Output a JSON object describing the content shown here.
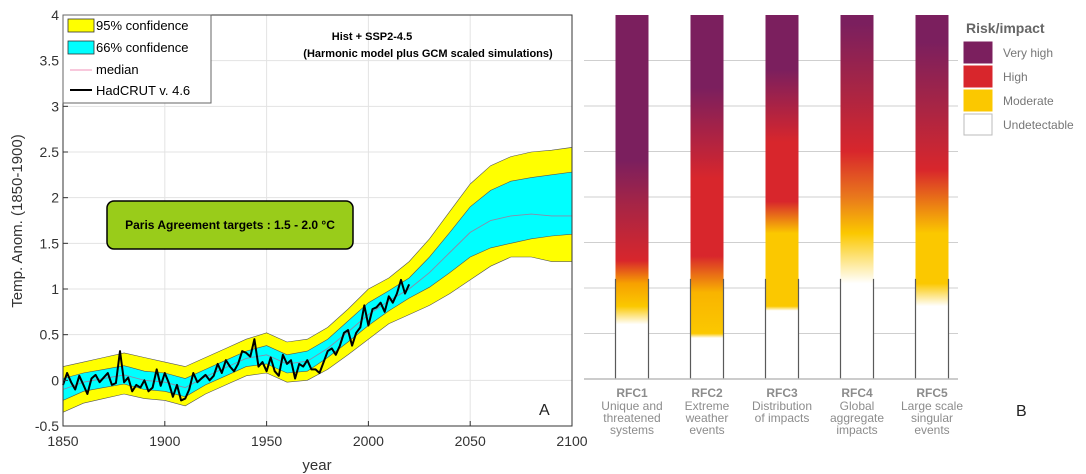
{
  "chart_data": [
    {
      "type": "area",
      "panel_label": "A",
      "title": "Hist + SSP2-4.5",
      "subtitle": "(Harmonic model plus GCM scaled simulations)",
      "xlabel": "year",
      "ylabel": "Temp. Anom. (1850-1900)",
      "xlim": [
        1850,
        2100
      ],
      "ylim": [
        -0.5,
        4
      ],
      "xticks": [
        "1850",
        "1900",
        "1950",
        "2000",
        "2050",
        "2100"
      ],
      "yticks": [
        "-0.5",
        "0",
        "0.5",
        "1",
        "1.5",
        "2",
        "2.5",
        "3",
        "3.5",
        "4"
      ],
      "grid": true,
      "legend_position": "top-left",
      "legend": [
        {
          "label": "95% confidence",
          "color": "#ffff00",
          "kind": "patch"
        },
        {
          "label": "66% confidence",
          "color": "#00ffff",
          "kind": "patch"
        },
        {
          "label": "median",
          "color": "#f4a6c8",
          "kind": "line"
        },
        {
          "label": "HadCRUT v. 4.6",
          "color": "#000000",
          "kind": "line"
        }
      ],
      "annotation": "Paris Agreement targets  :  1.5 - 2.0 °C",
      "annotation_color": "#99cc1a",
      "envelope_x": [
        1850,
        1860,
        1870,
        1880,
        1890,
        1900,
        1910,
        1920,
        1930,
        1940,
        1950,
        1960,
        1970,
        1980,
        1990,
        2000,
        2010,
        2020,
        2030,
        2040,
        2050,
        2060,
        2070,
        2080,
        2090,
        2100
      ],
      "series": [
        {
          "name": "95% confidence",
          "color": "#ffff00",
          "lower": [
            -0.35,
            -0.25,
            -0.2,
            -0.15,
            -0.2,
            -0.22,
            -0.28,
            -0.15,
            -0.05,
            0.05,
            0.08,
            -0.02,
            0.0,
            0.12,
            0.28,
            0.45,
            0.62,
            0.72,
            0.82,
            0.95,
            1.1,
            1.25,
            1.35,
            1.35,
            1.3,
            1.3
          ],
          "upper": [
            0.15,
            0.2,
            0.25,
            0.3,
            0.25,
            0.2,
            0.15,
            0.25,
            0.35,
            0.45,
            0.52,
            0.42,
            0.45,
            0.58,
            0.78,
            1.0,
            1.12,
            1.3,
            1.55,
            1.85,
            2.15,
            2.35,
            2.45,
            2.5,
            2.52,
            2.55
          ]
        },
        {
          "name": "66% confidence",
          "color": "#00ffff",
          "lower": [
            -0.22,
            -0.12,
            -0.08,
            -0.04,
            -0.1,
            -0.12,
            -0.18,
            -0.05,
            0.05,
            0.15,
            0.18,
            0.08,
            0.1,
            0.25,
            0.42,
            0.6,
            0.76,
            0.9,
            1.02,
            1.18,
            1.35,
            1.45,
            1.5,
            1.55,
            1.58,
            1.6
          ],
          "upper": [
            0.02,
            0.08,
            0.12,
            0.16,
            0.1,
            0.08,
            0.02,
            0.12,
            0.22,
            0.32,
            0.38,
            0.28,
            0.32,
            0.45,
            0.65,
            0.85,
            0.98,
            1.12,
            1.35,
            1.62,
            1.9,
            2.08,
            2.18,
            2.22,
            2.25,
            2.28
          ]
        },
        {
          "name": "median",
          "color": "#f4a6c8",
          "values": [
            -0.1,
            -0.02,
            0.02,
            0.06,
            0.0,
            -0.02,
            -0.08,
            0.04,
            0.14,
            0.24,
            0.28,
            0.18,
            0.21,
            0.35,
            0.53,
            0.72,
            0.87,
            1.0,
            1.18,
            1.4,
            1.62,
            1.75,
            1.8,
            1.82,
            1.8,
            1.8
          ]
        },
        {
          "name": "HadCRUT v. 4.6",
          "color": "#000000",
          "x": [
            1850,
            1852,
            1854,
            1856,
            1858,
            1860,
            1862,
            1864,
            1866,
            1868,
            1870,
            1872,
            1874,
            1876,
            1878,
            1880,
            1882,
            1884,
            1886,
            1888,
            1890,
            1892,
            1894,
            1896,
            1898,
            1900,
            1902,
            1904,
            1906,
            1908,
            1910,
            1912,
            1914,
            1916,
            1918,
            1920,
            1922,
            1924,
            1926,
            1928,
            1930,
            1932,
            1934,
            1936,
            1938,
            1940,
            1942,
            1944,
            1946,
            1948,
            1950,
            1952,
            1954,
            1956,
            1958,
            1960,
            1962,
            1964,
            1966,
            1968,
            1970,
            1972,
            1974,
            1976,
            1978,
            1980,
            1982,
            1984,
            1986,
            1988,
            1990,
            1992,
            1994,
            1996,
            1998,
            2000,
            2002,
            2004,
            2006,
            2008,
            2010,
            2012,
            2014,
            2016,
            2018,
            2020
          ],
          "values": [
            -0.05,
            0.08,
            -0.02,
            -0.1,
            0.05,
            -0.05,
            -0.15,
            0.02,
            0.06,
            -0.02,
            0.03,
            0.08,
            -0.05,
            -0.03,
            0.32,
            -0.02,
            0.03,
            -0.12,
            -0.05,
            -0.08,
            0.0,
            -0.12,
            -0.08,
            0.12,
            -0.06,
            0.08,
            -0.03,
            -0.18,
            -0.05,
            -0.22,
            -0.2,
            -0.1,
            0.08,
            -0.02,
            0.02,
            0.06,
            0.0,
            0.05,
            0.18,
            0.08,
            0.22,
            0.15,
            0.1,
            0.18,
            0.32,
            0.3,
            0.26,
            0.45,
            0.15,
            0.2,
            0.1,
            0.25,
            0.1,
            0.05,
            0.28,
            0.18,
            0.22,
            0.02,
            0.18,
            0.15,
            0.22,
            0.12,
            0.12,
            0.08,
            0.2,
            0.32,
            0.35,
            0.28,
            0.38,
            0.52,
            0.55,
            0.38,
            0.52,
            0.58,
            0.82,
            0.6,
            0.78,
            0.8,
            0.85,
            0.75,
            0.92,
            0.85,
            0.95,
            1.1,
            0.95,
            1.05
          ]
        }
      ]
    },
    {
      "type": "heatmap",
      "panel_label": "B",
      "legend_title": "Risk/impact",
      "legend_position": "top-right",
      "levels": [
        {
          "label": "Very high",
          "color": "#7b1f5e"
        },
        {
          "label": "High",
          "color": "#d8262c"
        },
        {
          "label": "Moderate",
          "color": "#fbc800"
        },
        {
          "label": "Undetectable",
          "color": "#ffffff"
        }
      ],
      "categories": [
        {
          "code": "RFC1",
          "lines": [
            "Unique and",
            "threatened",
            "systems"
          ],
          "stops": [
            [
              0,
              "#ffffff"
            ],
            [
              0.6,
              "#ffffff"
            ],
            [
              0.8,
              "#fbc800"
            ],
            [
              1.05,
              "#f7a100"
            ],
            [
              1.3,
              "#d8262c"
            ],
            [
              1.9,
              "#a72545"
            ],
            [
              2.4,
              "#7b1f5e"
            ],
            [
              4,
              "#7b1f5e"
            ]
          ]
        },
        {
          "code": "RFC2",
          "lines": [
            "Extreme",
            "weather",
            "events"
          ],
          "stops": [
            [
              0,
              "#ffffff"
            ],
            [
              0.45,
              "#ffffff"
            ],
            [
              0.5,
              "#fbc800"
            ],
            [
              0.95,
              "#f9b400"
            ],
            [
              1.35,
              "#d8262c"
            ],
            [
              2.2,
              "#d8262c"
            ],
            [
              3.2,
              "#7b1f5e"
            ],
            [
              4,
              "#7b1f5e"
            ]
          ]
        },
        {
          "code": "RFC3",
          "lines": [
            "Distribution",
            "of impacts"
          ],
          "stops": [
            [
              0,
              "#ffffff"
            ],
            [
              0.75,
              "#ffffff"
            ],
            [
              0.8,
              "#fbc800"
            ],
            [
              1.6,
              "#fbc800"
            ],
            [
              1.95,
              "#d8262c"
            ],
            [
              2.6,
              "#d8262c"
            ],
            [
              3.4,
              "#7b1f5e"
            ],
            [
              4,
              "#7b1f5e"
            ]
          ]
        },
        {
          "code": "RFC4",
          "lines": [
            "Global",
            "aggregate",
            "impacts"
          ],
          "stops": [
            [
              0,
              "#ffffff"
            ],
            [
              1.05,
              "#ffffff"
            ],
            [
              1.6,
              "#fbc800"
            ],
            [
              2.0,
              "#e9781c"
            ],
            [
              2.5,
              "#d8262c"
            ],
            [
              3.2,
              "#a72545"
            ],
            [
              3.9,
              "#7b1f5e"
            ],
            [
              4,
              "#7b1f5e"
            ]
          ]
        },
        {
          "code": "RFC5",
          "lines": [
            "Large scale",
            "singular",
            "events"
          ],
          "stops": [
            [
              0,
              "#ffffff"
            ],
            [
              0.8,
              "#ffffff"
            ],
            [
              1.05,
              "#fbc800"
            ],
            [
              1.6,
              "#fbc800"
            ],
            [
              2.3,
              "#d8262c"
            ],
            [
              3.0,
              "#a72545"
            ],
            [
              3.7,
              "#7b1f5e"
            ],
            [
              4,
              "#7b1f5e"
            ]
          ]
        }
      ]
    }
  ]
}
